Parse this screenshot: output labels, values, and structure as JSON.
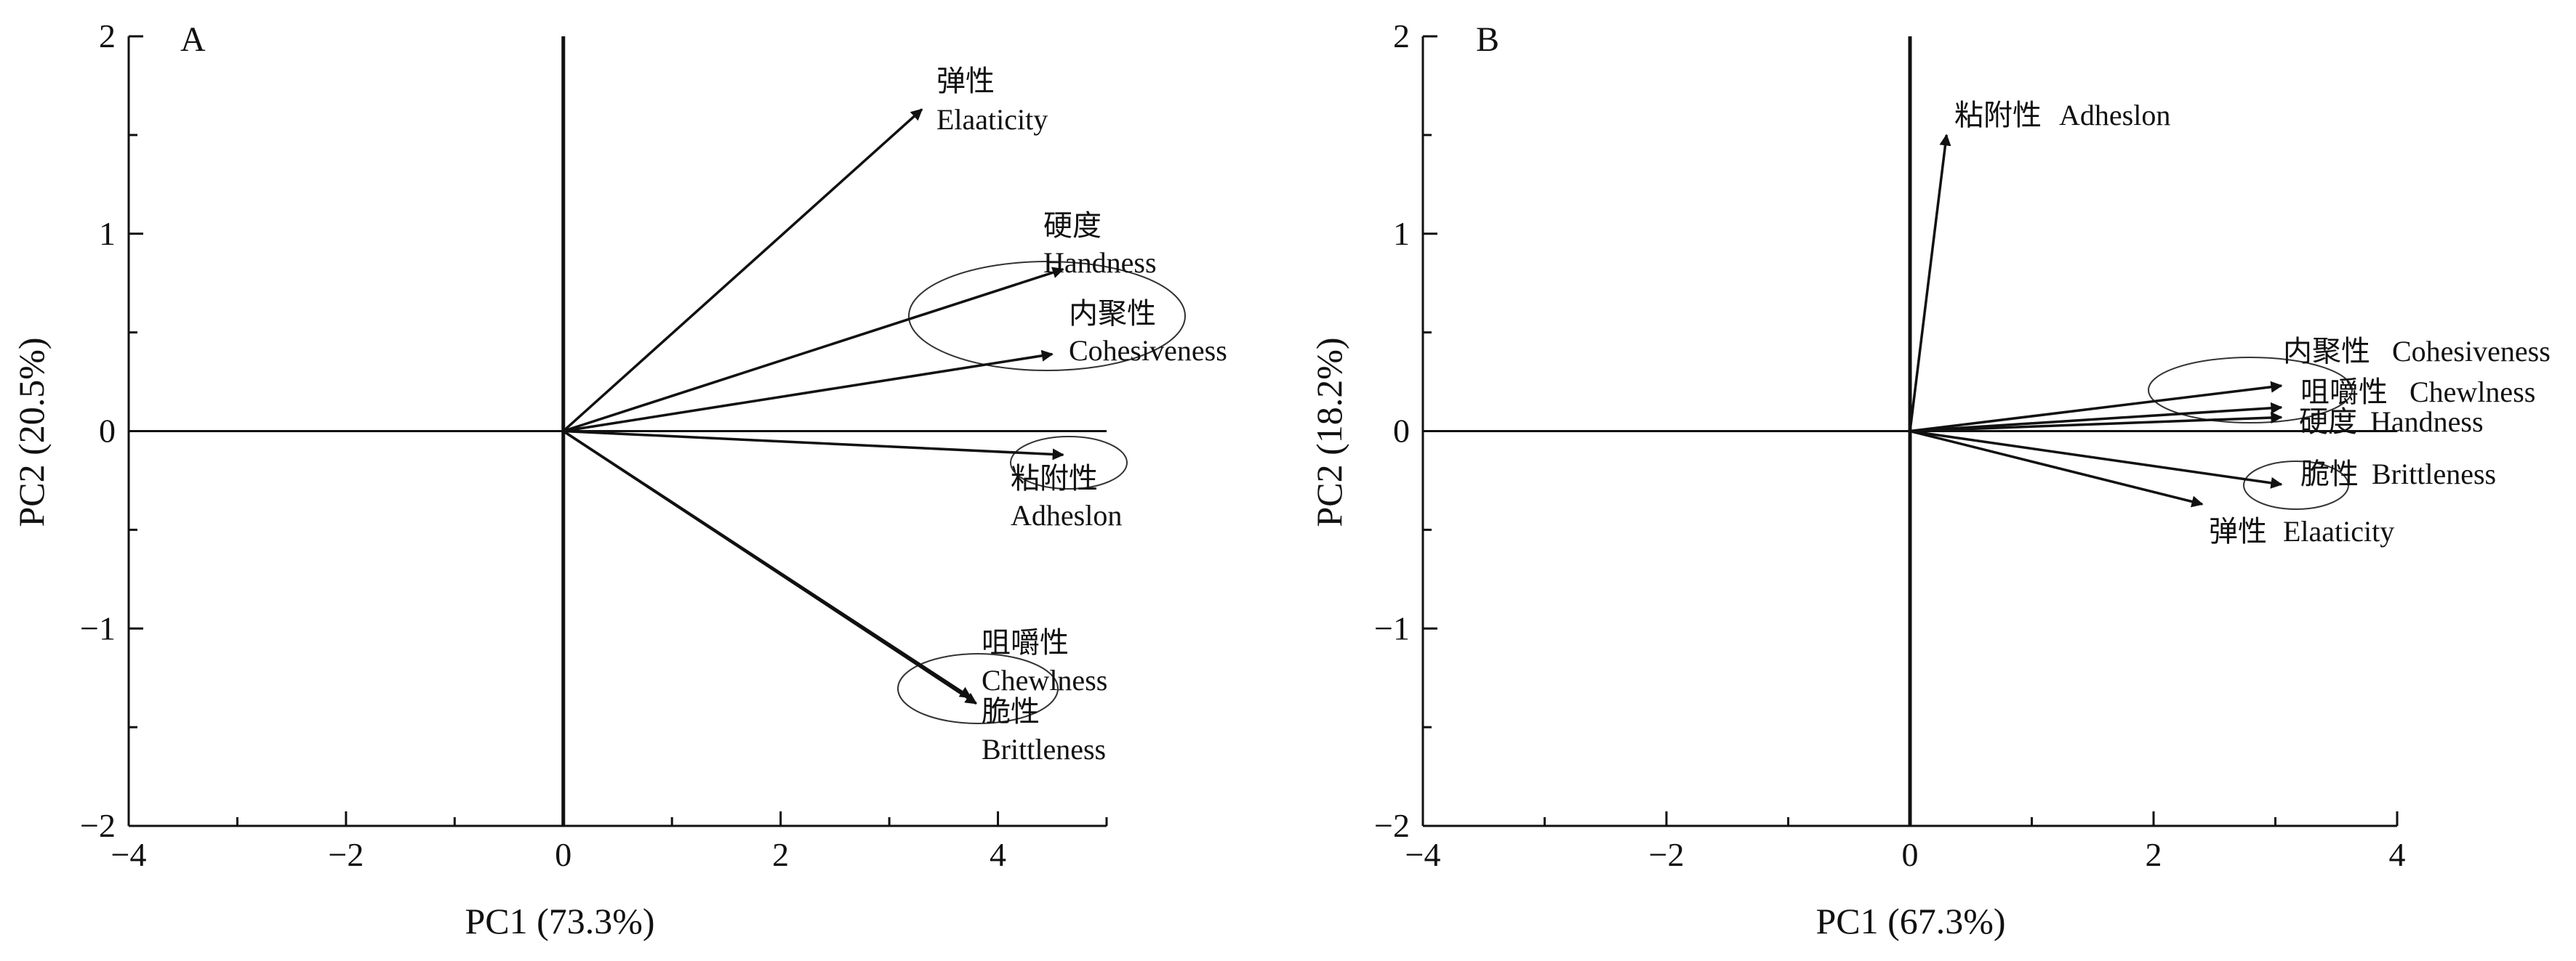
{
  "chart_data": [
    {
      "panel": "A",
      "type": "scatter",
      "subtype": "biplot-vectors",
      "xlabel": "PC1 (73.3%)",
      "ylabel": "PC2 (20.5%)",
      "xlim": [
        -4,
        5
      ],
      "ylim": [
        -2,
        2
      ],
      "xticks": [
        -4,
        -2,
        0,
        2,
        4
      ],
      "yticks": [
        -2,
        -1,
        0,
        1,
        2
      ],
      "grid": false,
      "vectors": [
        {
          "cn": "弹性",
          "en": "Elaaticity",
          "x": 3.3,
          "y": 1.63
        },
        {
          "cn": "硬度",
          "en": "Handness",
          "x": 4.6,
          "y": 0.82
        },
        {
          "cn": "内聚性",
          "en": "Cohesiveness",
          "x": 4.5,
          "y": 0.39
        },
        {
          "cn": "粘附性",
          "en": "Adheslon",
          "x": 4.6,
          "y": -0.12
        },
        {
          "cn": "咀嚼性",
          "en": "Chewlness",
          "x": 3.75,
          "y": -1.35
        },
        {
          "cn": "脆性",
          "en": "Brittleness",
          "x": 3.8,
          "y": -1.38
        }
      ],
      "clusters": [
        [
          "硬度",
          "内聚性"
        ],
        [
          "粘附性"
        ],
        [
          "咀嚼性",
          "脆性"
        ]
      ]
    },
    {
      "panel": "B",
      "type": "scatter",
      "subtype": "biplot-vectors",
      "xlabel": "PC1 (67.3%)",
      "ylabel": "PC2 (18.2%)",
      "xlim": [
        -4,
        4
      ],
      "ylim": [
        -2,
        2
      ],
      "xticks": [
        -4,
        -2,
        0,
        2,
        4
      ],
      "yticks": [
        -2,
        -1,
        0,
        1,
        2
      ],
      "grid": false,
      "vectors": [
        {
          "cn": "粘附性",
          "en": "Adheslon",
          "x": 0.3,
          "y": 1.5
        },
        {
          "cn": "内聚性",
          "en": "Cohesiveness",
          "x": 3.05,
          "y": 0.23
        },
        {
          "cn": "咀嚼性",
          "en": "Chewlness",
          "x": 3.05,
          "y": 0.12
        },
        {
          "cn": "硬度",
          "en": "Handness",
          "x": 3.05,
          "y": 0.07
        },
        {
          "cn": "脆性",
          "en": "Brittleness",
          "x": 3.05,
          "y": -0.27
        },
        {
          "cn": "弹性",
          "en": "Elaaticity",
          "x": 2.4,
          "y": -0.37
        }
      ],
      "clusters": [
        [
          "内聚性",
          "咀嚼性",
          "硬度"
        ],
        [
          "脆性"
        ]
      ]
    }
  ]
}
